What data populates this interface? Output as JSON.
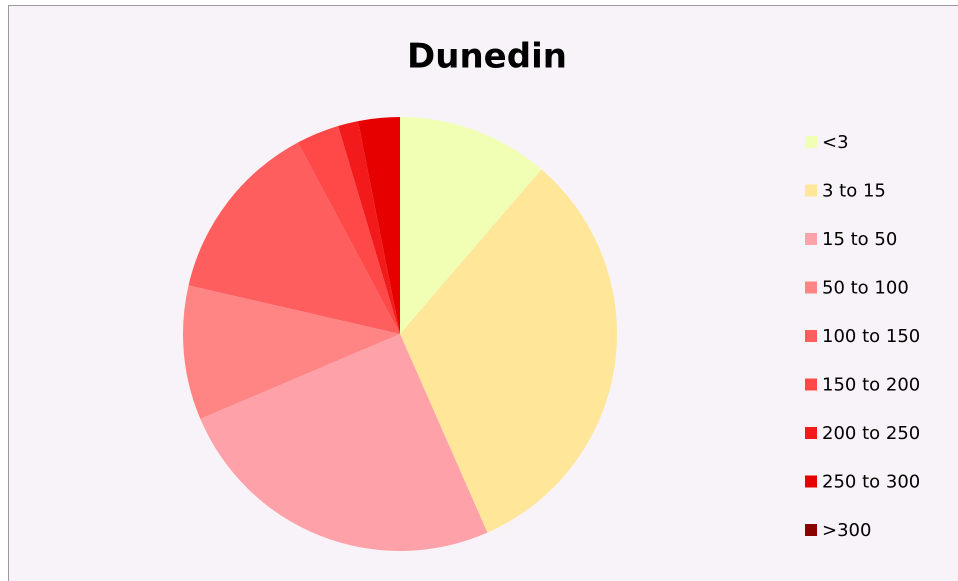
{
  "chart_data": {
    "type": "pie",
    "title": "Dunedin",
    "categories": [
      "<3",
      "3 to 15",
      "15 to 50",
      "50 to 100",
      "100 to 150",
      "150 to 200",
      "200 to 250",
      "250 to 300",
      ">300"
    ],
    "values": [
      11.3,
      32.1,
      25.2,
      10.0,
      13.6,
      3.2,
      1.5,
      3.1,
      0
    ],
    "colors": [
      "#f0ffb4",
      "#ffe699",
      "#ffa1a8",
      "#ff8585",
      "#ff5e5e",
      "#ff4848",
      "#f21a1a",
      "#e60000",
      "#8b0000"
    ],
    "legend": "right"
  }
}
